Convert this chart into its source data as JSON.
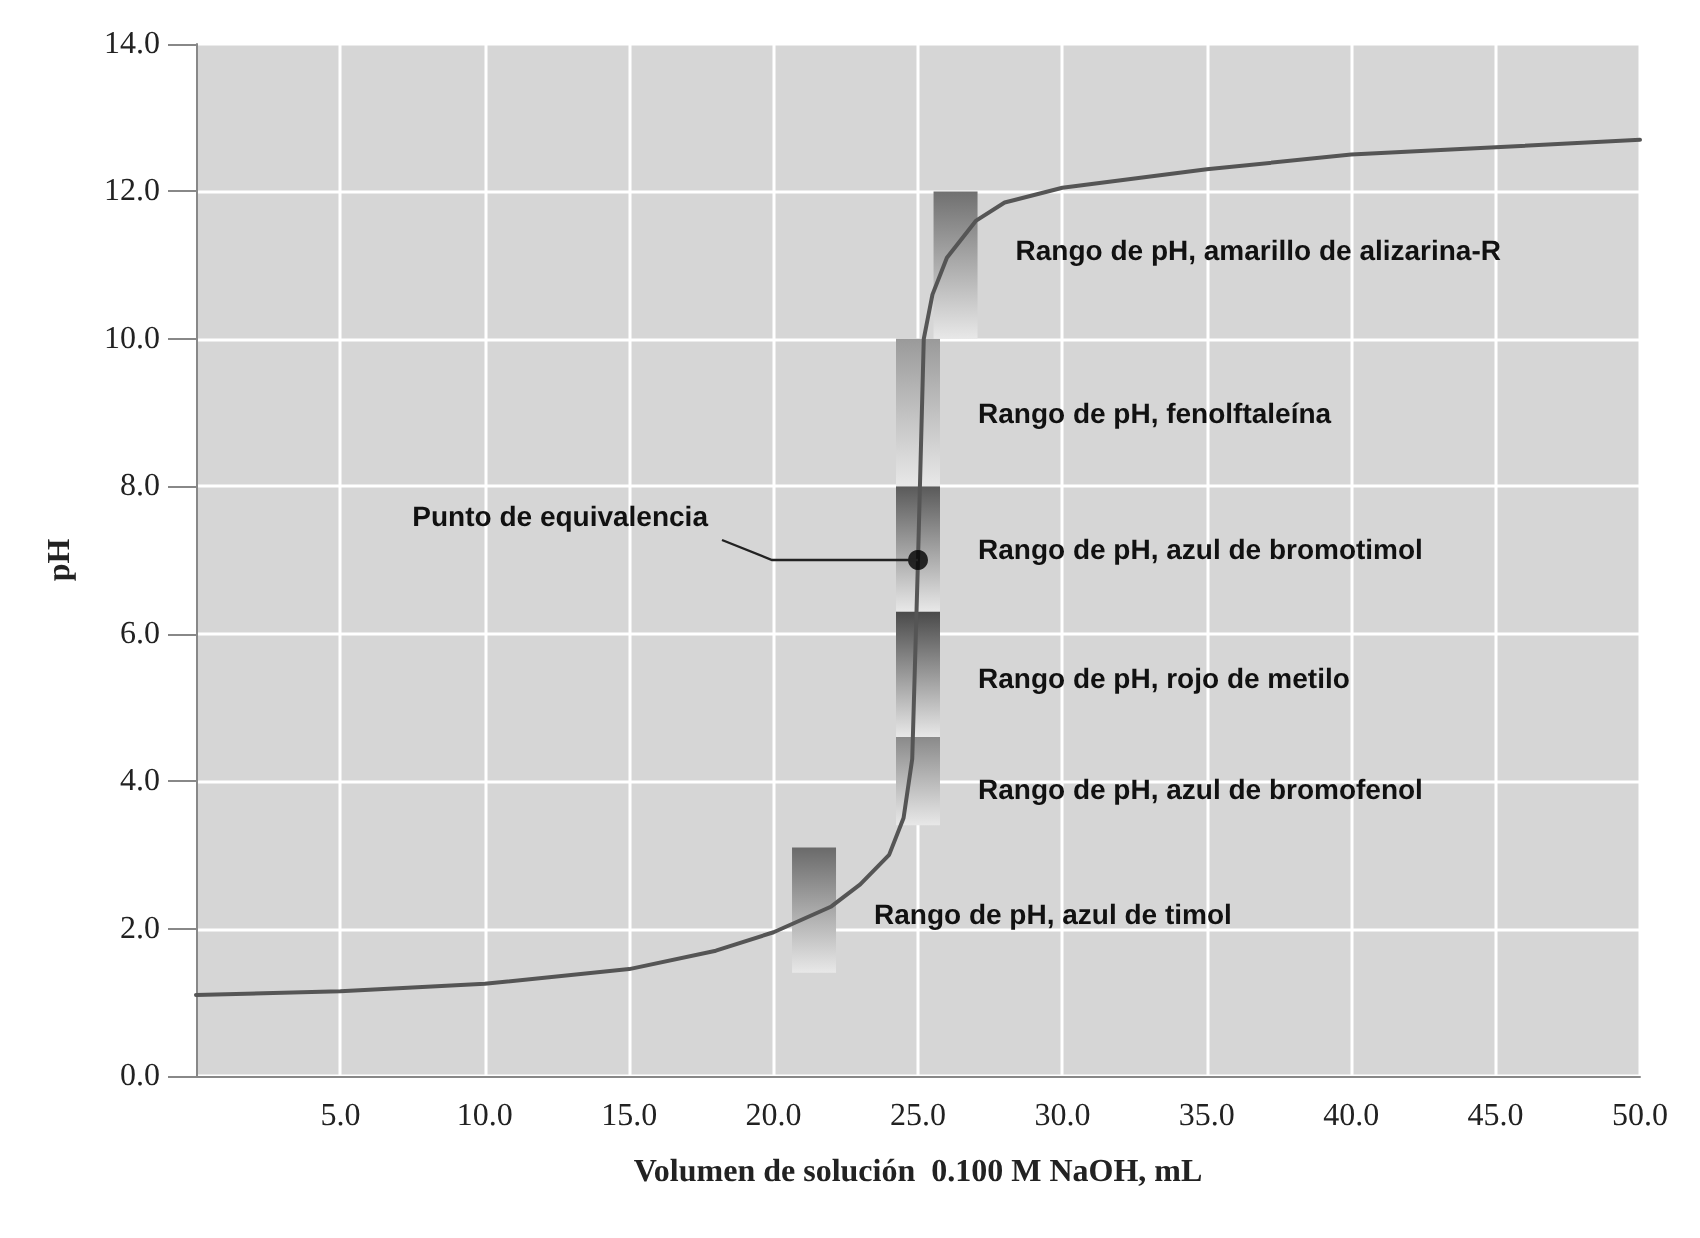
{
  "chart_data": {
    "type": "line",
    "xlabel": "Volumen de solución  0.100 M NaOH, mL",
    "ylabel": "pH",
    "xlim": [
      0,
      50
    ],
    "xticks": [
      {
        "value": 5,
        "label": "5.0"
      },
      {
        "value": 10,
        "label": "10.0"
      },
      {
        "value": 15,
        "label": "15.0"
      },
      {
        "value": 20,
        "label": "20.0"
      },
      {
        "value": 25,
        "label": "25.0"
      },
      {
        "value": 30,
        "label": "30.0"
      },
      {
        "value": 35,
        "label": "35.0"
      },
      {
        "value": 40,
        "label": "40.0"
      },
      {
        "value": 45,
        "label": "45.0"
      },
      {
        "value": 50,
        "label": "50.0"
      }
    ],
    "ylim": [
      0,
      14
    ],
    "yticks": [
      {
        "value": 0,
        "label": "0.0"
      },
      {
        "value": 2,
        "label": "2.0"
      },
      {
        "value": 4,
        "label": "4.0"
      },
      {
        "value": 6,
        "label": "6.0"
      },
      {
        "value": 8,
        "label": "8.0"
      },
      {
        "value": 10,
        "label": "10.0"
      },
      {
        "value": 12,
        "label": "12.0"
      },
      {
        "value": 14,
        "label": "14.0"
      }
    ],
    "grid": true,
    "series": [
      {
        "color": "#555555",
        "marker": "none",
        "x": [
          0,
          5,
          10,
          15,
          18,
          20,
          22,
          23,
          24,
          24.5,
          24.8,
          25,
          25.2,
          25.5,
          26,
          27,
          28,
          30,
          35,
          40,
          45,
          50
        ],
        "values": [
          1.1,
          1.15,
          1.25,
          1.45,
          1.7,
          1.95,
          2.3,
          2.6,
          3.0,
          3.5,
          4.3,
          7.0,
          10.0,
          10.6,
          11.1,
          11.6,
          11.85,
          12.05,
          12.3,
          12.5,
          12.6,
          12.7
        ]
      },
      {
        "type": "bar",
        "x": [
          21.4
        ],
        "base": [
          1.4
        ],
        "values": [
          1.7
        ],
        "color": "#6a6a6a"
      },
      {
        "type": "bar",
        "x": [
          25
        ],
        "base": [
          3.4
        ],
        "values": [
          1.2
        ],
        "color": "#8a8a8a"
      },
      {
        "type": "bar",
        "x": [
          25
        ],
        "base": [
          4.6
        ],
        "values": [
          1.7
        ],
        "color": "#4a4a4a"
      },
      {
        "type": "bar",
        "x": [
          25
        ],
        "base": [
          6.3
        ],
        "values": [
          1.7
        ],
        "color": "#5a5a5a"
      },
      {
        "type": "bar",
        "x": [
          25
        ],
        "base": [
          8.0
        ],
        "values": [
          2.0
        ],
        "color": "#9a9a9a"
      },
      {
        "type": "bar",
        "x": [
          26.3
        ],
        "base": [
          10.0
        ],
        "values": [
          2.0
        ],
        "color": "#707070"
      },
      {
        "type": "scatter",
        "color": "#000000",
        "marker": "circle",
        "x": [
          25
        ],
        "values": [
          7.0
        ]
      }
    ],
    "annotations": [
      {
        "text": "Punto de equivalencia",
        "x": 25,
        "y": 7.0
      },
      {
        "text": "Rango de pH, amarillo de alizarina-R",
        "x": 26.3,
        "y": 11.2
      },
      {
        "text": "Rango de pH, fenolftaleína",
        "x": 25,
        "y": 9.0
      },
      {
        "text": "Rango de pH, azul de bromotimol",
        "x": 25,
        "y": 7.15
      },
      {
        "text": "Rango de pH, rojo de metilo",
        "x": 25,
        "y": 5.4
      },
      {
        "text": "Rango de pH, azul de bromofenol",
        "x": 25,
        "y": 3.9
      },
      {
        "text": "Rango de pH, azul de timol",
        "x": 21.4,
        "y": 2.2
      }
    ]
  }
}
